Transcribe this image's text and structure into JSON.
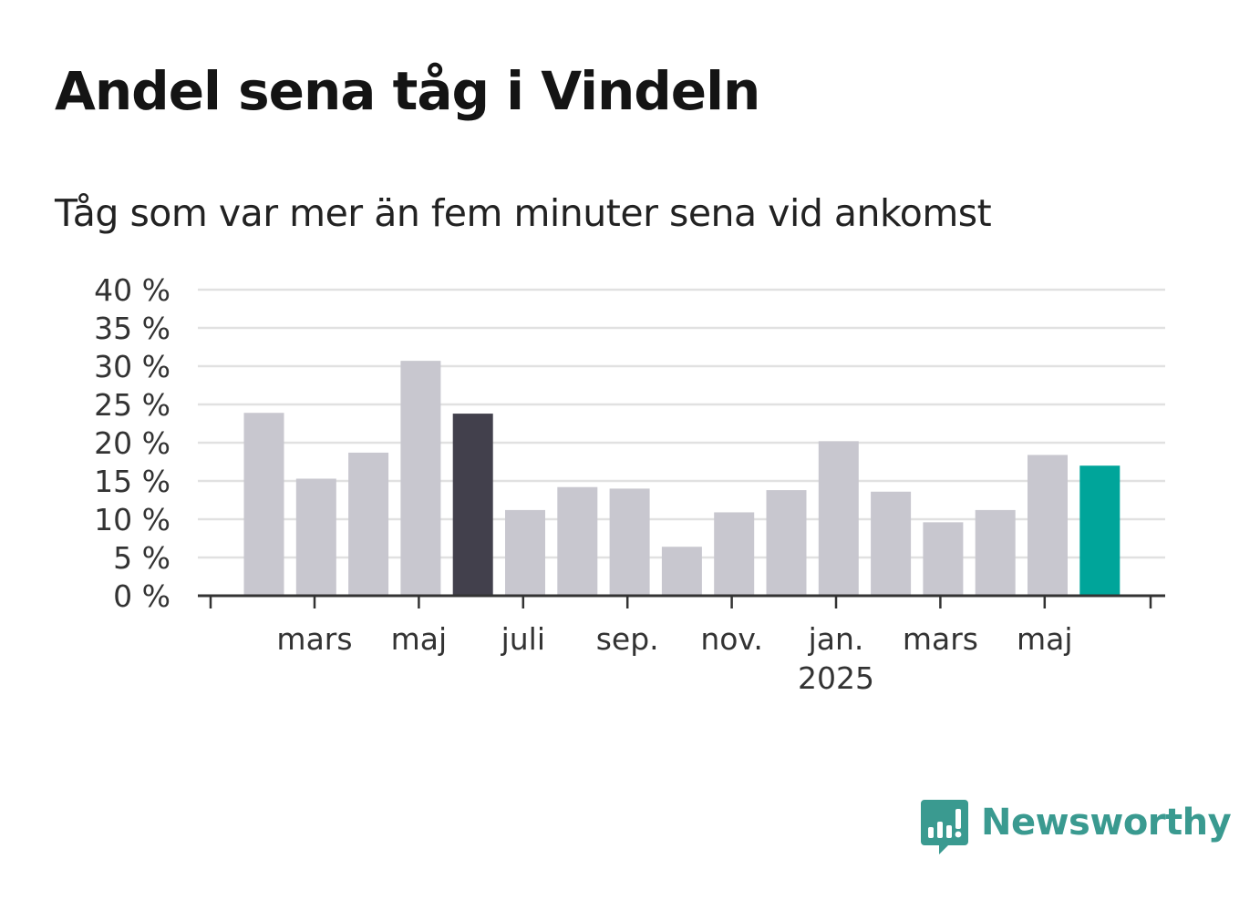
{
  "title": "Andel sena tåg i Vindeln",
  "subtitle": "Tåg som var mer än fem minuter sena vid ankomst",
  "brand": {
    "name": "Newsworthy",
    "color": "#3a9a90"
  },
  "colors": {
    "bar_default": "#c8c7cf",
    "bar_highlight_dark": "#42404c",
    "bar_highlight_accent": "#00a59a",
    "grid": "#e1e1e1",
    "axis": "#333333"
  },
  "chart_data": {
    "type": "bar",
    "categories": [
      "2024-02",
      "2024-03",
      "2024-04",
      "2024-05",
      "2024-06",
      "2024-07",
      "2024-08",
      "2024-09",
      "2024-10",
      "2024-11",
      "2024-12",
      "2025-01",
      "2025-02",
      "2025-03",
      "2025-04",
      "2025-05",
      "2025-06"
    ],
    "values": [
      23.9,
      15.3,
      18.7,
      30.7,
      23.8,
      11.2,
      14.2,
      14.0,
      6.4,
      10.9,
      13.8,
      20.2,
      13.6,
      9.6,
      11.2,
      18.4,
      17.0
    ],
    "highlights": {
      "4": "dark",
      "16": "accent"
    },
    "ylim": [
      0,
      40
    ],
    "yticks": [
      0,
      5,
      10,
      15,
      20,
      25,
      30,
      35,
      40
    ],
    "ytick_labels": [
      "0 %",
      "5 %",
      "10 %",
      "15 %",
      "20 %",
      "25 %",
      "30 %",
      "35 %",
      "40 %"
    ],
    "xtick_labels": [
      {
        "label": "mars",
        "sublabel": ""
      },
      {
        "label": "maj",
        "sublabel": ""
      },
      {
        "label": "juli",
        "sublabel": ""
      },
      {
        "label": "sep.",
        "sublabel": ""
      },
      {
        "label": "nov.",
        "sublabel": ""
      },
      {
        "label": "jan.",
        "sublabel": "2025"
      },
      {
        "label": "mars",
        "sublabel": ""
      },
      {
        "label": "maj",
        "sublabel": ""
      }
    ],
    "xlabel": "",
    "ylabel": "",
    "grid": true,
    "legend": "none"
  }
}
